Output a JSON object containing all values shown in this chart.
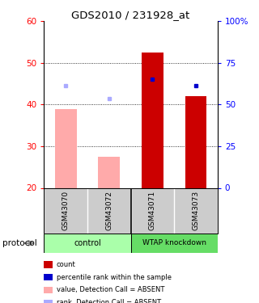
{
  "title": "GDS2010 / 231928_at",
  "samples": [
    "GSM43070",
    "GSM43072",
    "GSM43071",
    "GSM43073"
  ],
  "groups": [
    "control",
    "control",
    "WTAP knockdown",
    "WTAP knockdown"
  ],
  "ylim": [
    20,
    60
  ],
  "y_left_ticks": [
    20,
    30,
    40,
    50,
    60
  ],
  "y_right_labels": [
    "0",
    "25",
    "50",
    "75",
    "100%"
  ],
  "bar_values_red": [
    null,
    null,
    52.5,
    42.0
  ],
  "bar_values_pink": [
    39.0,
    27.5,
    null,
    null
  ],
  "dot_blue_dark": [
    null,
    null,
    46.0,
    44.5
  ],
  "dot_blue_light": [
    44.5,
    41.5,
    null,
    null
  ],
  "bar_color_red": "#cc0000",
  "bar_color_pink": "#ffaaaa",
  "dot_color_blue_dark": "#0000cc",
  "dot_color_blue_light": "#aaaaff",
  "bg_color": "#ffffff",
  "sample_bg": "#cccccc",
  "group_bg_control": "#aaffaa",
  "group_bg_wtap": "#66dd66",
  "legend_items": [
    {
      "color": "#cc0000",
      "label": "count"
    },
    {
      "color": "#0000cc",
      "label": "percentile rank within the sample"
    },
    {
      "color": "#ffaaaa",
      "label": "value, Detection Call = ABSENT"
    },
    {
      "color": "#aaaaff",
      "label": "rank, Detection Call = ABSENT"
    }
  ],
  "figsize": [
    3.2,
    3.75
  ],
  "dpi": 100
}
